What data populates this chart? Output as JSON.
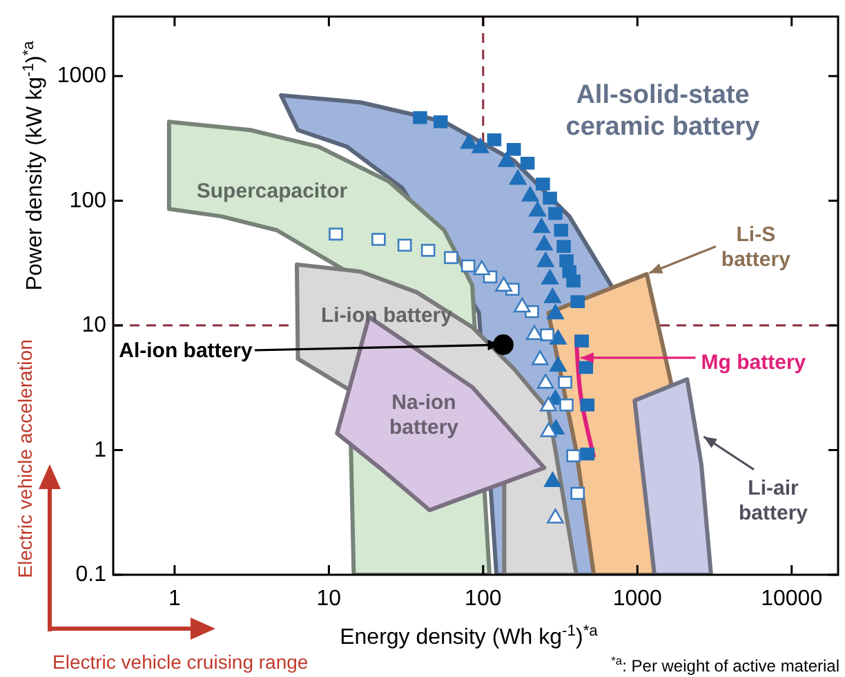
{
  "chart_data": {
    "type": "scatter",
    "xlabel": "Energy density (Wh kg$^{-1}$)$^{*a}$",
    "ylabel": "Power density (kW kg$^{-1}$)$^{*a}$",
    "log": "xy",
    "xlim": [
      0.4,
      20000
    ],
    "ylim": [
      0.1,
      3000
    ],
    "xticks": [
      1,
      10,
      100,
      1000,
      10000
    ],
    "yticks": [
      0.1,
      1,
      10,
      100,
      1000
    ],
    "ref_lines": [
      {
        "axis": "x",
        "value": 100,
        "label": null,
        "color": "#8b2c3c",
        "line_style": "dashed"
      },
      {
        "axis": "y",
        "value": 10,
        "label": null,
        "color": "#8b2c3c",
        "line_style": "dashed"
      }
    ],
    "series": [
      {
        "type": "area",
        "color": "#9fb4dc",
        "x": [
          4.9,
          16.1,
          56,
          158,
          362,
          675,
          548,
          122,
          94,
          30,
          13.1,
          6.3
        ],
        "values": [
          700,
          615,
          430,
          210,
          75,
          21,
          0.1,
          0.1,
          12.6,
          126,
          271,
          369
        ]
      },
      {
        "type": "area",
        "color": "#d4e8d2",
        "x": [
          0.92,
          3.1,
          8.6,
          24.4,
          56,
          85,
          110,
          14.5,
          13.1,
          4.6,
          2.0,
          0.92
        ],
        "values": [
          430,
          369,
          271,
          143,
          58,
          21,
          0.1,
          0.1,
          27,
          58,
          75,
          86
        ]
      },
      {
        "type": "area",
        "color": "#d9d9d9",
        "x": [
          6.2,
          16.1,
          37,
          85,
          158,
          265,
          294,
          402,
          137,
          137,
          6.3
        ],
        "values": [
          30.8,
          27,
          18.5,
          9.7,
          4.5,
          2.1,
          1.0,
          0.1,
          0.1,
          0.54,
          5.4
        ]
      },
      {
        "type": "area",
        "color": "#d9c6e4",
        "x": [
          18.2,
          85,
          249,
          45,
          22,
          11.3
        ],
        "values": [
          11.7,
          3.2,
          0.72,
          0.33,
          0.7,
          1.36
        ]
      },
      {
        "type": "area",
        "color": "#f8c796",
        "x": [
          265,
          1150,
          1650,
          1280,
          522,
          402,
          326
        ],
        "values": [
          12.6,
          25.8,
          3.5,
          0.1,
          0.1,
          0.98,
          3.5
        ]
      },
      {
        "type": "area",
        "color": "#c8cae8",
        "x": [
          960,
          2100,
          2600,
          3000,
          1290,
          1070
        ],
        "values": [
          2.5,
          3.7,
          0.76,
          0.1,
          0.1,
          0.76
        ]
      },
      {
        "type": "line",
        "color": "#e0207a",
        "x": [
          402,
          430,
          520
        ],
        "values": [
          8.1,
          2.7,
          0.9
        ]
      },
      {
        "marker": "square",
        "color": "#1f6fb8",
        "x": [
          39,
          53,
          118,
          158,
          194,
          244,
          271,
          294,
          320,
          333,
          347,
          362,
          385,
          410,
          436,
          464,
          474,
          474
        ],
        "values": [
          464,
          430,
          308,
          258,
          200,
          136,
          105,
          79,
          58,
          43,
          33,
          27,
          22.7,
          15.5,
          7.5,
          4.6,
          2.3,
          0.93
        ]
      },
      {
        "marker": "triangle",
        "color": "#1f6fb8",
        "x": [
          81,
          96,
          142,
          168,
          202,
          225,
          239,
          249,
          254,
          271,
          282,
          294,
          306,
          306,
          294,
          296,
          282
        ],
        "values": [
          293,
          271,
          210,
          151,
          111,
          84,
          62,
          45,
          33,
          24,
          17,
          12.6,
          7.9,
          4.8,
          2.6,
          1.5,
          0.57
        ]
      },
      {
        "marker": "square",
        "color": "#ffffff",
        "x": [
          11.1,
          21,
          31,
          44,
          62,
          80,
          111,
          155,
          207,
          260,
          340,
          347,
          385,
          410
        ],
        "values": [
          54,
          49,
          44,
          40,
          35,
          30,
          24.5,
          19.5,
          12.9,
          8.4,
          3.5,
          2.3,
          0.9,
          0.45
        ]
      },
      {
        "marker": "triangle",
        "color": "#ffffff",
        "x": [
          98,
          136,
          179,
          215,
          234,
          254,
          265,
          266,
          294
        ],
        "values": [
          28.5,
          21,
          14.3,
          8.6,
          5.4,
          3.5,
          2.3,
          1.43,
          0.29
        ]
      },
      {
        "marker": "circle",
        "color": "#000000",
        "x": [
          135
        ],
        "values": [
          7.0
        ]
      }
    ],
    "annotations": [
      "All-solid-state ceramic battery",
      "Supercapacitor",
      "Li-ion battery",
      "Na-ion battery",
      {
        "text": "Li-S battery",
        "x": 1150,
        "y": 25.8
      },
      {
        "text": "Mg battery",
        "x": 413,
        "y": 5.5
      },
      {
        "text": "Li-air battery",
        "x": 2600,
        "y": 1.32
      },
      {
        "text": "Al-ion battery",
        "x": 135,
        "y": 7.0
      },
      "$^{*a}$: Per weight of active material",
      "Electric vehicle acceleration",
      "Electric vehicle cruising range"
    ]
  }
}
